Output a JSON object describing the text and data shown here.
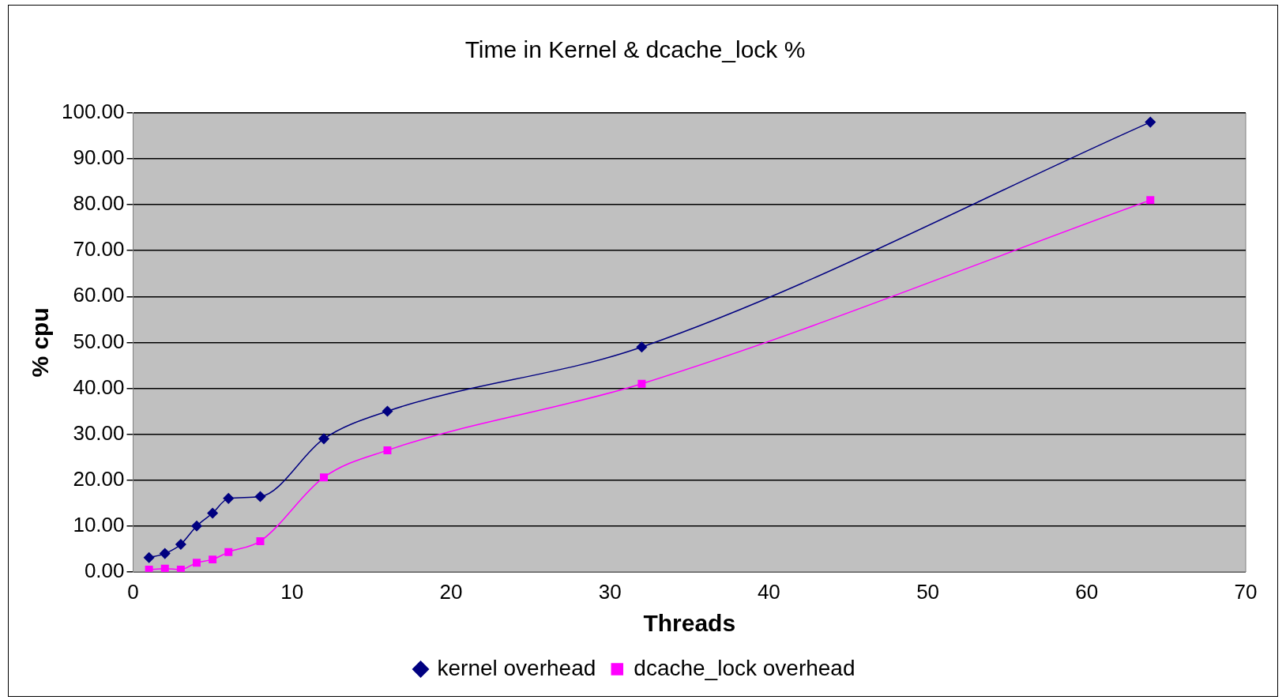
{
  "chart_data": {
    "type": "line",
    "title": "Time in Kernel & dcache_lock %",
    "xlabel": "Threads",
    "ylabel": "% cpu",
    "x": [
      1,
      2,
      3,
      4,
      5,
      6,
      8,
      12,
      16,
      32,
      64
    ],
    "series": [
      {
        "name": "kernel overhead",
        "color": "#000080",
        "marker": "diamond",
        "values": [
          3.1,
          4,
          6,
          10,
          12.8,
          16,
          16.4,
          29,
          35,
          49,
          98
        ]
      },
      {
        "name": "dcache_lock overhead",
        "color": "#ff00ff",
        "marker": "square",
        "values": [
          0.5,
          0.7,
          0.5,
          2,
          2.7,
          4.3,
          6.7,
          20.6,
          26.5,
          41,
          81
        ]
      }
    ],
    "xlim": [
      0,
      70
    ],
    "xticks": [
      0,
      10,
      20,
      30,
      40,
      50,
      60,
      70
    ],
    "ylim": [
      0,
      100
    ],
    "yticks": [
      {
        "value": 0,
        "label": "0.00"
      },
      {
        "value": 10,
        "label": "10.00"
      },
      {
        "value": 20,
        "label": "20.00"
      },
      {
        "value": 30,
        "label": "30.00"
      },
      {
        "value": 40,
        "label": "40.00"
      },
      {
        "value": 50,
        "label": "50.00"
      },
      {
        "value": 60,
        "label": "60.00"
      },
      {
        "value": 70,
        "label": "70.00"
      },
      {
        "value": 80,
        "label": "80.00"
      },
      {
        "value": 90,
        "label": "90.00"
      },
      {
        "value": 100,
        "label": "100.00"
      }
    ],
    "grid": "y",
    "legend": "bottom",
    "line_style": "solid"
  }
}
